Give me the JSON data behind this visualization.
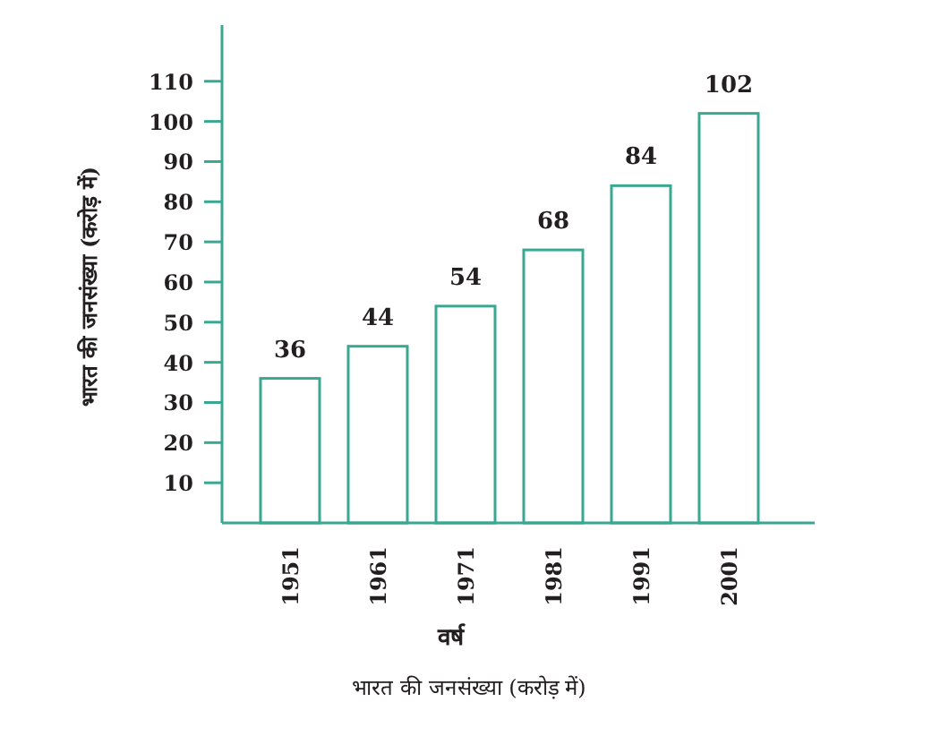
{
  "chart_data": {
    "type": "bar",
    "categories": [
      "1951",
      "1961",
      "1971",
      "1981",
      "1991",
      "2001"
    ],
    "values": [
      36,
      44,
      54,
      68,
      84,
      102
    ],
    "color": "#3aa891",
    "data_labels": true,
    "ylim": [
      0,
      124
    ],
    "yticks": [
      10,
      20,
      30,
      40,
      50,
      60,
      70,
      80,
      90,
      100,
      110
    ],
    "xlabel": "वर्ष",
    "ylabel": "भारत की जनसंख्या (करोड़ में)",
    "annotations": [
      "भारत की जनसंख्या (करोड़ में)"
    ]
  }
}
